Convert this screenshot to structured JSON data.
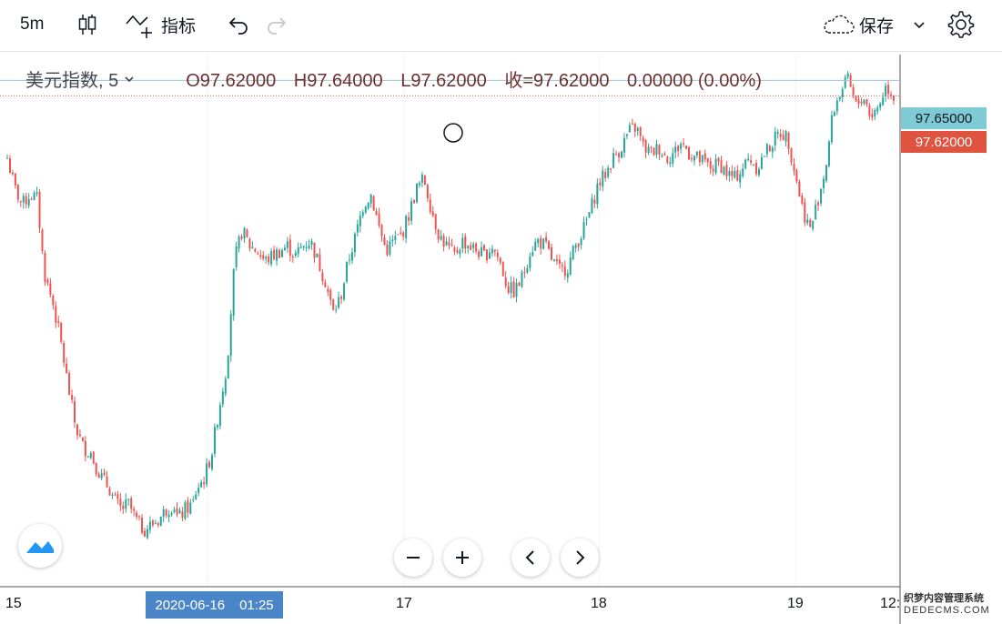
{
  "toolbar": {
    "interval": "5m",
    "indicators_label": "指标",
    "save_label": "保存"
  },
  "legend": {
    "symbol": "美元指数, 5",
    "open": "O97.62000",
    "high": "H97.64000",
    "low": "L97.62000",
    "close": "收=97.62000",
    "change": "0.00000 (0.00%)"
  },
  "colors": {
    "up": "#26a69a",
    "down": "#ef5350",
    "price_label_blue": "#7ecbd6",
    "price_label_red": "#e0533f",
    "date_label": "#4a86c7"
  },
  "chart_data": {
    "type": "line",
    "description_series": "5-minute candlestick bars of 美元指数",
    "x_ticks": [
      "15",
      "17",
      "18",
      "19",
      "12:"
    ],
    "crosshair_date": "2020-06-16",
    "crosshair_time": "01:25",
    "price_labels": [
      "97.65000",
      "97.62000"
    ],
    "crosshair_price": 97.65,
    "last_price": 97.62,
    "ylim": [
      96.67,
      97.7
    ],
    "series": [
      {
        "x": [
          0,
          2,
          4,
          6,
          8,
          9,
          10,
          12,
          14,
          16,
          18,
          20,
          22,
          23,
          25,
          27,
          28,
          30,
          32,
          34,
          36,
          38,
          40,
          42,
          44,
          45,
          47,
          49,
          50,
          52,
          54,
          56,
          58,
          60,
          62,
          64,
          66,
          68,
          70,
          72,
          74,
          76,
          78,
          80,
          82,
          84,
          86,
          88,
          90,
          92,
          94,
          96,
          98,
          100,
          102,
          104,
          106,
          108,
          110,
          112,
          114,
          116,
          118,
          120,
          122,
          124,
          126,
          128,
          130,
          132,
          134,
          136,
          138,
          140,
          142,
          144,
          146,
          148,
          150,
          152,
          154,
          156,
          158,
          160,
          162,
          164,
          166,
          168,
          170,
          172,
          174,
          176,
          178,
          180,
          182,
          184,
          186,
          188,
          190,
          192,
          194,
          196,
          198,
          200,
          202,
          204,
          206,
          208,
          210,
          212,
          214,
          216,
          218,
          220,
          222,
          224,
          226,
          228,
          230,
          232,
          234
        ],
        "values": [
          97.5,
          97.44,
          97.41,
          97.43,
          97.42,
          97.33,
          97.27,
          97.22,
          97.15,
          97.06,
          96.98,
          96.94,
          96.93,
          96.91,
          96.88,
          96.86,
          96.84,
          96.82,
          96.83,
          96.8,
          96.78,
          96.79,
          96.8,
          96.82,
          96.83,
          96.8,
          96.82,
          96.83,
          96.86,
          96.88,
          96.93,
          97.02,
          97.1,
          97.3,
          97.36,
          97.33,
          97.32,
          97.3,
          97.31,
          97.32,
          97.33,
          97.31,
          97.33,
          97.34,
          97.3,
          97.26,
          97.2,
          97.23,
          97.3,
          97.35,
          97.41,
          97.43,
          97.37,
          97.32,
          97.34,
          97.35,
          97.39,
          97.44,
          97.46,
          97.4,
          97.35,
          97.33,
          97.31,
          97.34,
          97.33,
          97.32,
          97.31,
          97.33,
          97.3,
          97.25,
          97.24,
          97.27,
          97.32,
          97.34,
          97.33,
          97.3,
          97.28,
          97.29,
          97.33,
          97.36,
          97.4,
          97.45,
          97.47,
          97.5,
          97.52,
          97.55,
          97.56,
          97.52,
          97.51,
          97.52,
          97.5,
          97.51,
          97.53,
          97.51,
          97.5,
          97.49,
          97.48,
          97.49,
          97.47,
          97.46,
          97.48,
          97.5,
          97.48,
          97.51,
          97.53,
          97.55,
          97.54,
          97.47,
          97.4,
          97.36,
          97.42,
          97.48,
          97.59,
          97.63,
          97.65,
          97.6,
          97.62,
          97.58,
          97.6,
          97.64,
          97.62
        ]
      }
    ]
  },
  "watermark": {
    "line1": "织梦内容管理系统",
    "line2": "DEDECMS.COM"
  }
}
